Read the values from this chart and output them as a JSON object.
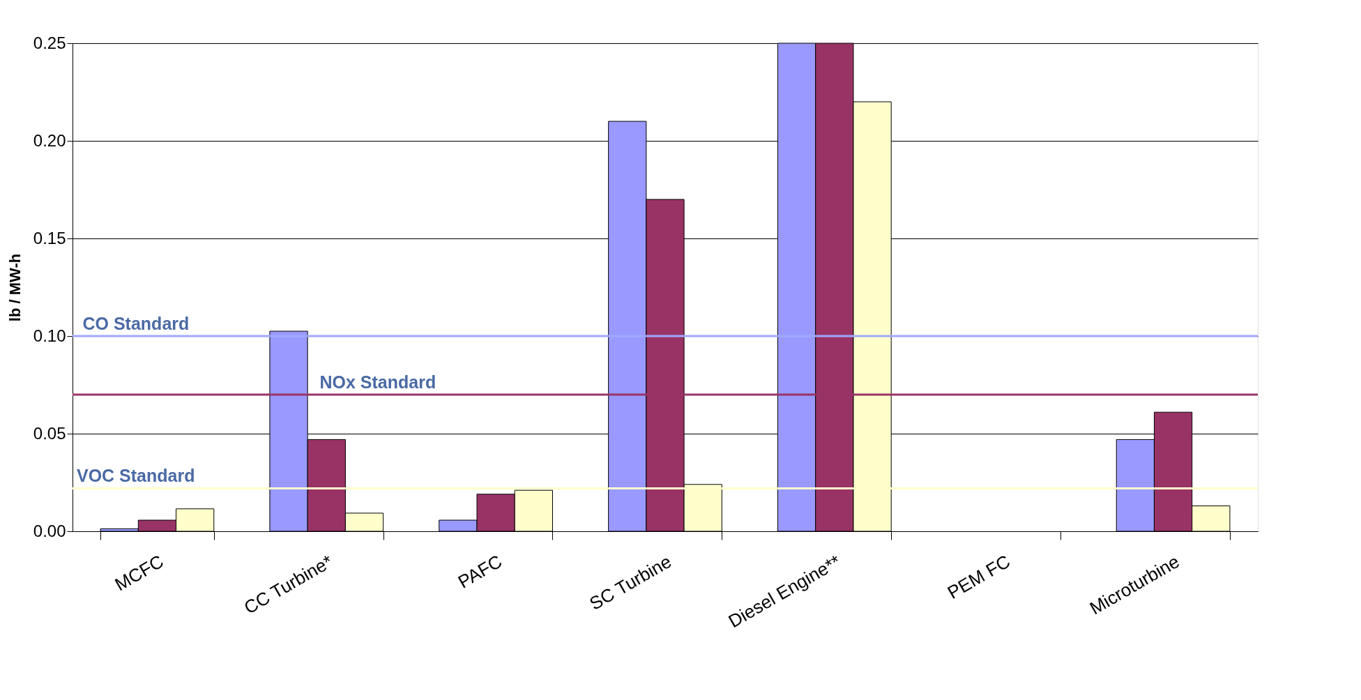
{
  "chart_data": {
    "type": "bar",
    "ylabel": "lb / MW-h",
    "categories": [
      "MCFC",
      "CC Turbine*",
      "PAFC",
      "SC Turbine",
      "Diesel Engine**",
      "PEM FC",
      "Microturbine"
    ],
    "series": [
      {
        "color": "#9999ff",
        "values": [
          0.0013,
          0.1025,
          0.0057,
          0.21,
          0.25,
          null,
          0.047
        ]
      },
      {
        "color": "#993366",
        "values": [
          0.0057,
          0.047,
          0.019,
          0.17,
          0.25,
          null,
          0.061
        ]
      },
      {
        "color": "#ffffcc",
        "values": [
          0.0115,
          0.0093,
          0.021,
          0.024,
          0.22,
          null,
          0.013
        ]
      }
    ],
    "ylim": [
      0,
      0.25
    ],
    "yticks": [
      {
        "value": 0,
        "label": "0.00"
      },
      {
        "value": 0.05,
        "label": "0.05"
      },
      {
        "value": 0.1,
        "label": "0.10"
      },
      {
        "value": 0.15,
        "label": "0.15"
      },
      {
        "value": 0.2,
        "label": "0.20"
      },
      {
        "value": 0.25,
        "label": "0.25"
      }
    ],
    "ref_lines": [
      {
        "axis": "y",
        "value": 0.1,
        "label": "CO Standard",
        "color": "#a0a8ff"
      },
      {
        "axis": "y",
        "value": 0.07,
        "label": "NOx Standard",
        "color": "#993366"
      },
      {
        "axis": "y",
        "value": 0.022,
        "label": "VOC Standard",
        "color": "#ffffcc"
      }
    ],
    "grid": "y",
    "legend": false
  }
}
